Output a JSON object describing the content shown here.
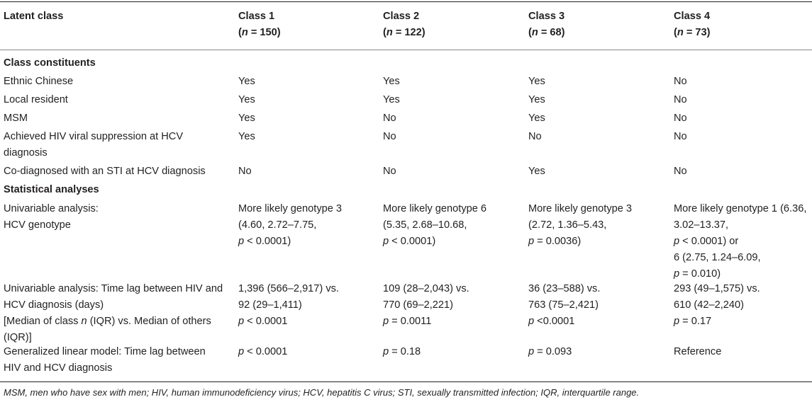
{
  "header": {
    "col0": "Latent class",
    "classes": [
      {
        "label": "Class 1",
        "n_prefix": "(",
        "n_italic": "n",
        "n_rest": " = 150)"
      },
      {
        "label": "Class 2",
        "n_prefix": "(",
        "n_italic": "n",
        "n_rest": " = 122)"
      },
      {
        "label": "Class 3",
        "n_prefix": "(",
        "n_italic": "n",
        "n_rest": " = 68)"
      },
      {
        "label": "Class 4",
        "n_prefix": "(",
        "n_italic": "n",
        "n_rest": " = 73)"
      }
    ]
  },
  "sections": {
    "constituents": "Class constituents",
    "statistical": "Statistical analyses"
  },
  "rows": {
    "ethnic": {
      "label": "Ethnic Chinese",
      "values": [
        "Yes",
        "Yes",
        "Yes",
        "No"
      ]
    },
    "local": {
      "label": "Local resident",
      "values": [
        "Yes",
        "Yes",
        "Yes",
        "No"
      ]
    },
    "msm": {
      "label": "MSM",
      "values": [
        "Yes",
        "No",
        "Yes",
        "No"
      ]
    },
    "viral": {
      "label_lines": [
        "Achieved HIV viral suppression at HCV",
        "diagnosis"
      ],
      "values": [
        "Yes",
        "No",
        "No",
        "No"
      ]
    },
    "sti": {
      "label": "Co-diagnosed with an STI at HCV diagnosis",
      "values": [
        "No",
        "No",
        "Yes",
        "No"
      ]
    },
    "genotype": {
      "label_lines": [
        "Univariable analysis:",
        "HCV genotype"
      ],
      "c1": {
        "l1": "More likely genotype 3",
        "l2": "(4.60, 2.72–7.75,",
        "l3_p": "p",
        "l3_rest": " < 0.0001)"
      },
      "c2": {
        "l1": "More likely genotype 6",
        "l2": "(5.35, 2.68–10.68,",
        "l3_p": "p",
        "l3_rest": " < 0.0001)"
      },
      "c3": {
        "l1": "More likely genotype 3",
        "l2": "(2.72, 1.36–5.43,",
        "l3_p": "p",
        "l3_rest": " = 0.0036)"
      },
      "c4": {
        "l1": "More likely genotype 1 (6.36,",
        "l2": "3.02–13.37,",
        "l3_p": "p",
        "l3_rest": " < 0.0001) or",
        "l4": "6 (2.75, 1.24–6.09,",
        "l5_p": "p",
        "l5_rest": " = 0.010)"
      }
    },
    "timelag": {
      "label_l1": "Univariable analysis: Time lag between HIV and",
      "label_l2": "HCV diagnosis (days)",
      "label_l3_a": "[Median of class ",
      "label_l3_n": "n",
      "label_l3_b": " (IQR) vs. Median of others",
      "label_l4": "(IQR)]",
      "c1": {
        "l1": "1,396 (566–2,917) vs.",
        "l2": "92 (29–1,411)",
        "p": "p",
        "rest": " < 0.0001"
      },
      "c2": {
        "l1": "109 (28–2,043) vs.",
        "l2": "770 (69–2,221)",
        "p": "p",
        "rest": " = 0.0011"
      },
      "c3": {
        "l1": "36 (23–588) vs.",
        "l2": "763 (75–2,421)",
        "p": "p",
        "rest": " <0.0001"
      },
      "c4": {
        "l1": "293 (49–1,575) vs.",
        "l2": "610 (42–2,240)",
        "p": "p",
        "rest": " = 0.17"
      }
    },
    "glm": {
      "label_lines": [
        "Generalized linear model: Time lag between",
        "HIV and HCV diagnosis"
      ],
      "c1": {
        "p": "p",
        "rest": " < 0.0001"
      },
      "c2": {
        "p": "p",
        "rest": " = 0.18"
      },
      "c3": {
        "p": "p",
        "rest": " = 0.093"
      },
      "c4": {
        "text": "Reference"
      }
    }
  },
  "footnote": "MSM, men who have sex with men; HIV, human immunodeficiency virus; HCV, hepatitis C virus; STI, sexually transmitted infection; IQR, interquartile range."
}
